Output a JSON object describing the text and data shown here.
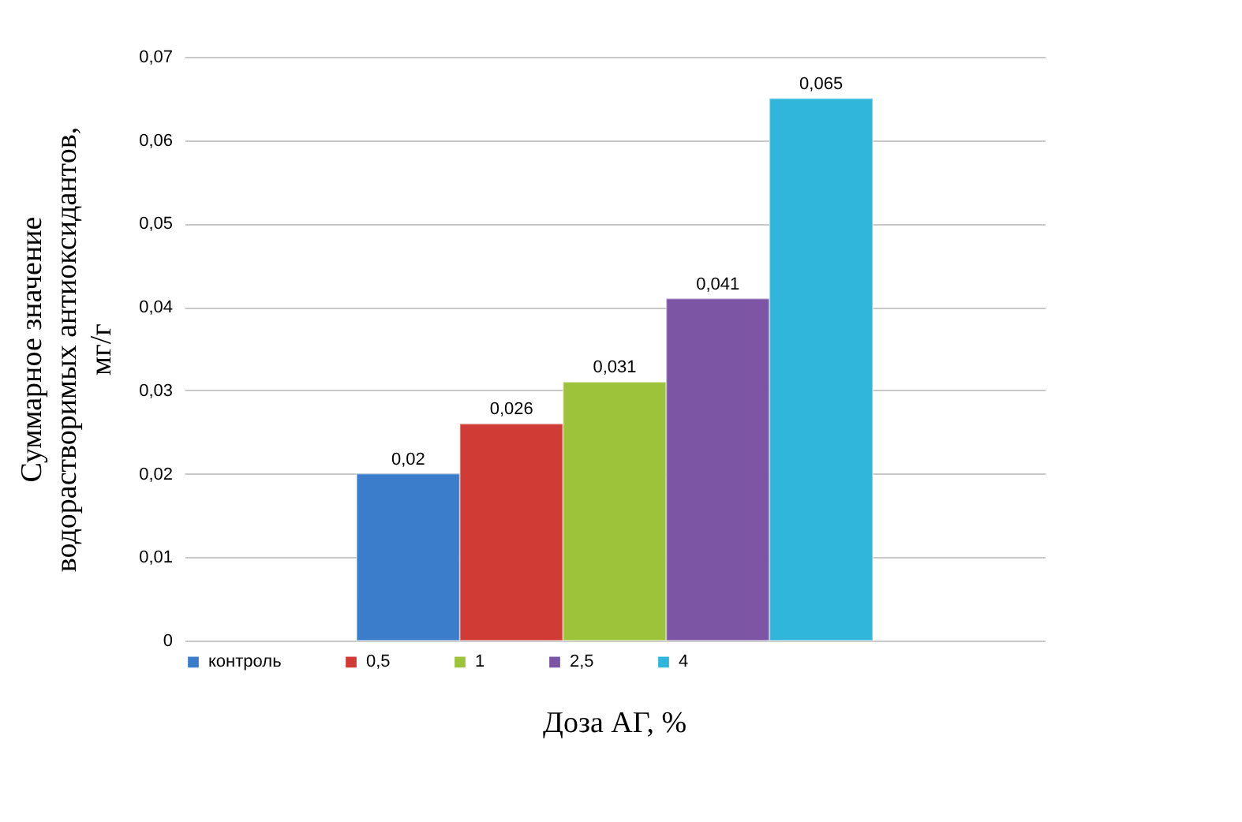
{
  "chart_data": {
    "type": "bar",
    "xlabel": "Доза АГ, %",
    "ylabel": "Суммарное значение\nводорастворимых антиоксидантов,\nмг/г",
    "categories": [
      null
    ],
    "series": [
      {
        "name": "контроль",
        "color": "#3b7dca",
        "values": [
          0.02
        ],
        "value_labels": [
          "0,02"
        ]
      },
      {
        "name": "0,5",
        "color": "#d13b35",
        "values": [
          0.026
        ],
        "value_labels": [
          "0,026"
        ]
      },
      {
        "name": "1",
        "color": "#9dc33b",
        "values": [
          0.031
        ],
        "value_labels": [
          "0,031"
        ]
      },
      {
        "name": "2,5",
        "color": "#7d55a5",
        "values": [
          0.041
        ],
        "value_labels": [
          "0,041"
        ]
      },
      {
        "name": "4",
        "color": "#2fb6da",
        "values": [
          0.065
        ],
        "value_labels": [
          "0,065"
        ]
      }
    ],
    "ylim": [
      0,
      0.07
    ],
    "yticks": [
      {
        "value": 0,
        "label": "0"
      },
      {
        "value": 0.01,
        "label": "0,01"
      },
      {
        "value": 0.02,
        "label": "0,02"
      },
      {
        "value": 0.03,
        "label": "0,03"
      },
      {
        "value": 0.04,
        "label": "0,04"
      },
      {
        "value": 0.05,
        "label": "0,05"
      },
      {
        "value": 0.06,
        "label": "0,06"
      },
      {
        "value": 0.07,
        "label": "0,07"
      }
    ],
    "grid": "y",
    "legend": "bottom"
  }
}
